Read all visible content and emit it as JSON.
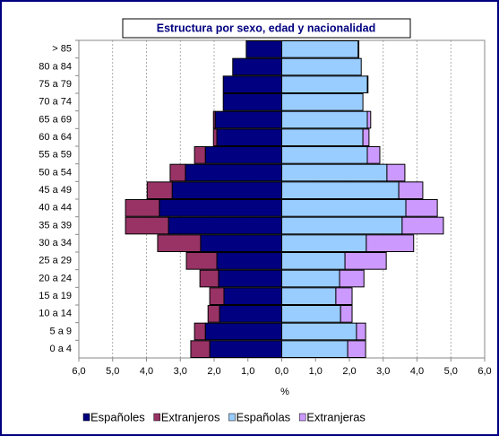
{
  "chart_data": {
    "type": "pyramid",
    "title": "Estructura por sexo, edad y nacionalidad",
    "x_label": "%",
    "categories": [
      "> 85",
      "80 a 84",
      "75 a 79",
      "70 a 74",
      "65 a 69",
      "60 a 64",
      "55 a 59",
      "50 a 54",
      "45 a 49",
      "40 a 44",
      "35 a 39",
      "30 a 34",
      "25 a 29",
      "20 a 24",
      "15 a 19",
      "10 a 14",
      "5 a 9",
      "0 a 4"
    ],
    "series": [
      {
        "name": "Españoles",
        "color": "#000080",
        "side": "left",
        "values": [
          1.05,
          1.45,
          1.73,
          1.73,
          1.97,
          1.92,
          2.26,
          2.85,
          3.24,
          3.62,
          3.35,
          2.4,
          1.92,
          1.87,
          1.71,
          1.84,
          2.26,
          2.13
        ]
      },
      {
        "name": "Extranjeros",
        "color": "#993366",
        "side": "left",
        "values": [
          0,
          0,
          0,
          0,
          0.05,
          0.1,
          0.32,
          0.45,
          0.74,
          1.0,
          1.27,
          1.27,
          0.9,
          0.55,
          0.42,
          0.34,
          0.32,
          0.56
        ]
      },
      {
        "name": "Españolas",
        "color": "#99CCFF",
        "side": "right",
        "values": [
          2.26,
          2.35,
          2.53,
          2.4,
          2.53,
          2.4,
          2.53,
          3.11,
          3.46,
          3.67,
          3.56,
          2.5,
          1.87,
          1.71,
          1.6,
          1.74,
          2.21,
          1.95
        ]
      },
      {
        "name": "Extranjeras",
        "color": "#CC99FF",
        "side": "right",
        "values": [
          0.02,
          0,
          0.02,
          0,
          0.1,
          0.18,
          0.37,
          0.53,
          0.71,
          0.93,
          1.22,
          1.4,
          1.22,
          0.72,
          0.48,
          0.34,
          0.27,
          0.53
        ]
      }
    ],
    "xlim": [
      -6,
      6
    ],
    "xticks": [
      {
        "value": -6,
        "label": "6,0"
      },
      {
        "value": -5,
        "label": "5,0"
      },
      {
        "value": -4,
        "label": "4,0"
      },
      {
        "value": -3,
        "label": "3,0"
      },
      {
        "value": -2,
        "label": "2,0"
      },
      {
        "value": -1,
        "label": "1,0"
      },
      {
        "value": 0,
        "label": "0,0"
      },
      {
        "value": 1,
        "label": "1,0"
      },
      {
        "value": 2,
        "label": "2,0"
      },
      {
        "value": 3,
        "label": "3,0"
      },
      {
        "value": 4,
        "label": "4,0"
      },
      {
        "value": 5,
        "label": "5,0"
      },
      {
        "value": 6,
        "label": "6,0"
      }
    ],
    "grid": true,
    "legend": "bottom"
  }
}
